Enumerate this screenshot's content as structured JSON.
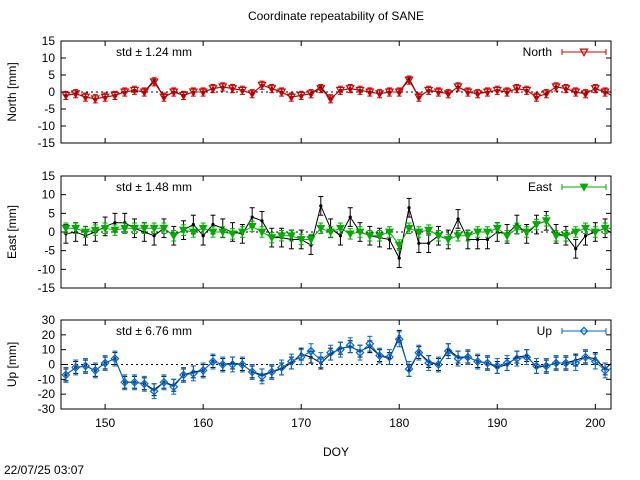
{
  "title": "Coordinate repeatability of SANE",
  "timestamp": "22/07/25 03:07",
  "xlabel": "DOY",
  "xlim": [
    145.5,
    201.6
  ],
  "xticks": [
    150,
    160,
    170,
    180,
    190,
    200
  ],
  "chart_data": [
    {
      "type": "line",
      "ylabel": "North [mm]",
      "ylim": [
        -15,
        15
      ],
      "yticks": [
        -15,
        -10,
        -5,
        0,
        5,
        10,
        15
      ],
      "std_label": "std ± 1.24 mm",
      "std_color": "#ff0000",
      "legend": "North",
      "legend_position": "top-right",
      "marker": "triangle-down-open",
      "series": [
        {
          "name": "North",
          "color": "#cc0000",
          "x": [
            146,
            147,
            148,
            149,
            150,
            151,
            152,
            153,
            154,
            155,
            156,
            157,
            158,
            159,
            160,
            161,
            162,
            163,
            164,
            165,
            166,
            167,
            168,
            169,
            170,
            171,
            172,
            173,
            174,
            175,
            176,
            177,
            178,
            179,
            180,
            181,
            182,
            183,
            184,
            185,
            186,
            187,
            188,
            189,
            190,
            191,
            192,
            193,
            194,
            195,
            196,
            197,
            198,
            199,
            200,
            201,
            202
          ],
          "y": [
            -1,
            -0.5,
            -1.5,
            -2,
            -1.5,
            -1,
            0,
            0.5,
            0,
            3,
            -1.5,
            0,
            -1,
            0,
            0,
            1,
            1.5,
            1,
            0.5,
            -0.5,
            2,
            1,
            0,
            -1.5,
            -1,
            -0.5,
            1,
            -2,
            0.5,
            1,
            0.5,
            0,
            -0.5,
            0,
            0,
            3.5,
            -1.5,
            0.5,
            0,
            -0.5,
            1.5,
            0,
            -0.5,
            0,
            0.5,
            0,
            1,
            0.5,
            -1.5,
            -0.5,
            1.5,
            1,
            0,
            -0.5,
            1,
            0,
            -1.5
          ],
          "err": 1.2
        },
        {
          "name": "",
          "color": "#000000",
          "x": [
            146,
            147,
            148,
            149,
            150,
            151,
            152,
            153,
            154,
            155,
            156,
            157,
            158,
            159,
            160,
            161,
            162,
            163,
            164,
            165,
            166,
            167,
            168,
            169,
            170,
            171,
            172,
            173,
            174,
            175,
            176,
            177,
            178,
            179,
            180,
            181,
            182,
            183,
            184,
            185,
            186,
            187,
            188,
            189,
            190,
            191,
            192,
            193,
            194,
            195,
            196,
            197,
            198,
            199,
            200,
            201,
            202
          ],
          "y": [
            -1,
            -0.5,
            -1.5,
            -2,
            -1.5,
            -1,
            0,
            0.5,
            0,
            3.5,
            -1.5,
            0,
            -1,
            0,
            0,
            1,
            1.5,
            1,
            0.5,
            -0.5,
            2,
            1,
            0,
            -1.5,
            -1,
            -0.5,
            1.5,
            -2,
            0.5,
            1,
            0.5,
            0,
            -0.5,
            0,
            0,
            4,
            -1.5,
            0.5,
            0,
            -0.5,
            1.5,
            0,
            -0.5,
            0,
            0.5,
            0,
            1,
            0.5,
            -1.5,
            -0.5,
            1.5,
            1,
            0,
            -0.5,
            1,
            0,
            -1.5
          ]
        }
      ]
    },
    {
      "type": "line",
      "ylabel": "East [mm]",
      "ylim": [
        -15,
        15
      ],
      "yticks": [
        -15,
        -10,
        -5,
        0,
        5,
        10,
        15
      ],
      "std_label": "std ± 1.48 mm",
      "std_color": "#00cc00",
      "legend": "East",
      "legend_position": "top-right",
      "marker": "triangle-down-filled",
      "series": [
        {
          "name": "East",
          "color": "#00aa00",
          "x": [
            146,
            147,
            148,
            149,
            150,
            151,
            152,
            153,
            154,
            155,
            156,
            157,
            158,
            159,
            160,
            161,
            162,
            163,
            164,
            165,
            166,
            167,
            168,
            169,
            170,
            171,
            172,
            173,
            174,
            175,
            176,
            177,
            178,
            179,
            180,
            181,
            182,
            183,
            184,
            185,
            186,
            187,
            188,
            189,
            190,
            191,
            192,
            193,
            194,
            195,
            196,
            197,
            198,
            199,
            200,
            201,
            202
          ],
          "y": [
            1,
            1,
            0,
            0.5,
            1,
            0.5,
            1,
            1,
            1,
            1,
            1,
            -1,
            0.5,
            0,
            1,
            0,
            0,
            -0.5,
            0,
            1.5,
            0,
            -1.5,
            -1,
            -1,
            -2,
            -2,
            1,
            0,
            1,
            -0.5,
            0,
            -1,
            -1,
            0,
            -3.5,
            1,
            0,
            0.5,
            -1,
            -2,
            -1,
            -1,
            0,
            0,
            1,
            -1,
            1,
            0,
            2,
            3,
            -1,
            -1,
            0,
            1,
            0,
            1,
            1
          ],
          "err": 1.4
        },
        {
          "name": "",
          "color": "#000000",
          "x": [
            146,
            147,
            148,
            149,
            150,
            151,
            152,
            153,
            154,
            155,
            156,
            157,
            158,
            159,
            160,
            161,
            162,
            163,
            164,
            165,
            166,
            167,
            168,
            169,
            170,
            171,
            172,
            173,
            174,
            175,
            176,
            177,
            178,
            179,
            180,
            181,
            182,
            183,
            184,
            185,
            186,
            187,
            188,
            189,
            190,
            191,
            192,
            193,
            194,
            195,
            196,
            197,
            198,
            199,
            200,
            201,
            202
          ],
          "y": [
            -0.5,
            0,
            -1,
            0,
            1.5,
            2.5,
            2.5,
            1,
            0,
            -1,
            1,
            -1,
            0.5,
            2,
            -1,
            2,
            1,
            0,
            -0.5,
            4,
            3,
            -1.5,
            -1.5,
            -2,
            -2,
            -3.5,
            7,
            1,
            -1,
            4,
            0,
            -1,
            -1.5,
            -2,
            -7,
            6.5,
            -3,
            -3,
            -1,
            -2,
            3.5,
            -2,
            -2,
            -2,
            0,
            -0.5,
            2,
            -0.5,
            2,
            3,
            -0.5,
            -1,
            -4.5,
            -1,
            0,
            1,
            -1
          ],
          "err": 2.5
        }
      ]
    },
    {
      "type": "line",
      "ylabel": "Up [mm]",
      "ylim": [
        -30,
        30
      ],
      "yticks": [
        -30,
        -20,
        -10,
        0,
        10,
        20,
        30
      ],
      "std_label": "std ± 6.76 mm",
      "std_color": "#2288dd",
      "legend": "Up",
      "legend_position": "top-right",
      "marker": "diamond-open",
      "series": [
        {
          "name": "Up",
          "color": "#0066cc",
          "x": [
            146,
            147,
            148,
            149,
            150,
            151,
            152,
            153,
            154,
            155,
            156,
            157,
            158,
            159,
            160,
            161,
            162,
            163,
            164,
            165,
            166,
            167,
            168,
            169,
            170,
            171,
            172,
            173,
            174,
            175,
            176,
            177,
            178,
            179,
            180,
            181,
            182,
            183,
            184,
            185,
            186,
            187,
            188,
            189,
            190,
            191,
            192,
            193,
            194,
            195,
            196,
            197,
            198,
            199,
            200,
            201,
            202
          ],
          "y": [
            -7,
            -2,
            -1,
            -4,
            1,
            4,
            -12,
            -12,
            -13,
            -18,
            -12,
            -15,
            -7,
            -6,
            -4,
            2,
            0,
            0,
            0,
            -5,
            -8,
            -5,
            -2,
            2,
            5,
            9,
            3,
            8,
            10,
            13,
            8,
            14,
            6,
            5,
            17,
            -3,
            8,
            1,
            0,
            9,
            4,
            5,
            2,
            1,
            -1,
            1,
            4,
            5,
            -1,
            -1,
            1,
            1,
            1,
            5,
            2,
            -4,
            -2
          ],
          "err": 5
        },
        {
          "name": "",
          "color": "#000000",
          "x": [
            146,
            147,
            148,
            149,
            150,
            151,
            152,
            153,
            154,
            155,
            156,
            157,
            158,
            159,
            160,
            161,
            162,
            163,
            164,
            165,
            166,
            167,
            168,
            169,
            170,
            171,
            172,
            173,
            174,
            175,
            176,
            177,
            178,
            179,
            180,
            181,
            182,
            183,
            184,
            185,
            186,
            187,
            188,
            189,
            190,
            191,
            192,
            193,
            194,
            195,
            196,
            197,
            198,
            199,
            200,
            201,
            202
          ],
          "y": [
            -7,
            -2,
            -1,
            -4,
            1,
            4,
            -12,
            -12,
            -13,
            -17,
            -12,
            -14,
            -7,
            -5,
            -4,
            2,
            0,
            1,
            0,
            -5,
            -7,
            -5,
            -3,
            1,
            7,
            5,
            1,
            7,
            11,
            12,
            9,
            12,
            6,
            4,
            19,
            -4,
            8,
            2,
            0,
            10,
            5,
            5,
            2,
            1,
            -2,
            0,
            5,
            6,
            -2,
            -1,
            1,
            1,
            3,
            5,
            4,
            -3,
            3
          ],
          "err": 4
        }
      ]
    }
  ]
}
